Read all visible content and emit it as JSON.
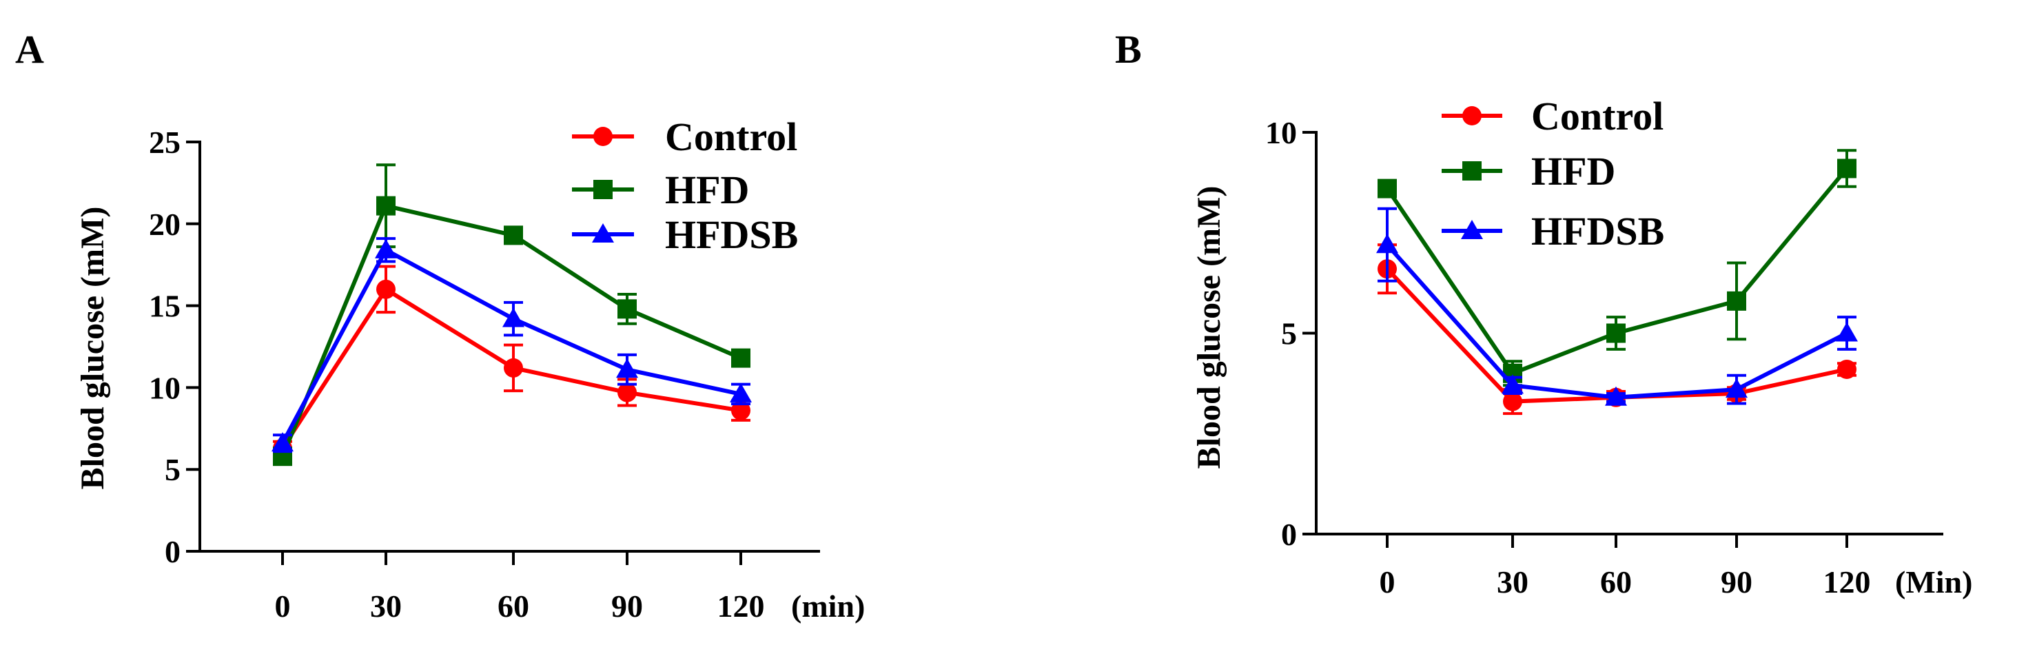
{
  "figure": {
    "series_colors": {
      "Control": "#ff0000",
      "HFD": "#006400",
      "HFDSB": "#0000ff"
    }
  },
  "chart_data": [
    {
      "panel": "A",
      "type": "line",
      "x": [
        0,
        30,
        60,
        90,
        120
      ],
      "x_tick_labels": [
        "0",
        "30",
        "60",
        "90",
        "120"
      ],
      "xlabel": "(min)",
      "ylabel": "Blood glucose (mM)",
      "ylim": [
        0,
        25
      ],
      "y_ticks": [
        0,
        5,
        10,
        15,
        20,
        25
      ],
      "legend": [
        "Control",
        "HFD",
        "HFDSB"
      ],
      "legend_position": "top-right",
      "series": [
        {
          "name": "Control",
          "marker": "circle",
          "values": [
            6.3,
            16.0,
            11.2,
            9.7,
            8.6
          ],
          "errors": [
            0.4,
            1.4,
            1.4,
            0.8,
            0.6
          ]
        },
        {
          "name": "HFD",
          "marker": "square",
          "values": [
            5.8,
            21.1,
            19.3,
            14.8,
            11.8
          ],
          "errors": [
            0.3,
            2.5,
            0.5,
            0.9,
            0.4
          ]
        },
        {
          "name": "HFDSB",
          "marker": "triangle",
          "values": [
            6.6,
            18.4,
            14.2,
            11.1,
            9.6
          ],
          "errors": [
            0.5,
            0.7,
            1.0,
            0.9,
            0.6
          ]
        }
      ]
    },
    {
      "panel": "B",
      "type": "line",
      "x": [
        0,
        30,
        60,
        90,
        120
      ],
      "x_tick_labels": [
        "0",
        "30",
        "60",
        "90",
        "120"
      ],
      "xlabel": "(Min)",
      "ylabel": "Blood glucose (mM)",
      "ylim": [
        0,
        10
      ],
      "y_ticks": [
        0,
        5,
        10
      ],
      "legend": [
        "Control",
        "HFD",
        "HFDSB"
      ],
      "legend_position": "top-left",
      "series": [
        {
          "name": "Control",
          "marker": "circle",
          "values": [
            6.6,
            3.3,
            3.4,
            3.5,
            4.1
          ],
          "errors": [
            0.6,
            0.3,
            0.15,
            0.15,
            0.15
          ]
        },
        {
          "name": "HFD",
          "marker": "square",
          "values": [
            8.6,
            4.0,
            5.0,
            5.8,
            9.1
          ],
          "errors": [
            0.15,
            0.3,
            0.4,
            0.95,
            0.45
          ]
        },
        {
          "name": "HFDSB",
          "marker": "triangle",
          "values": [
            7.2,
            3.7,
            3.4,
            3.6,
            5.0
          ],
          "errors": [
            0.9,
            0.2,
            0.1,
            0.35,
            0.4
          ]
        }
      ]
    }
  ]
}
